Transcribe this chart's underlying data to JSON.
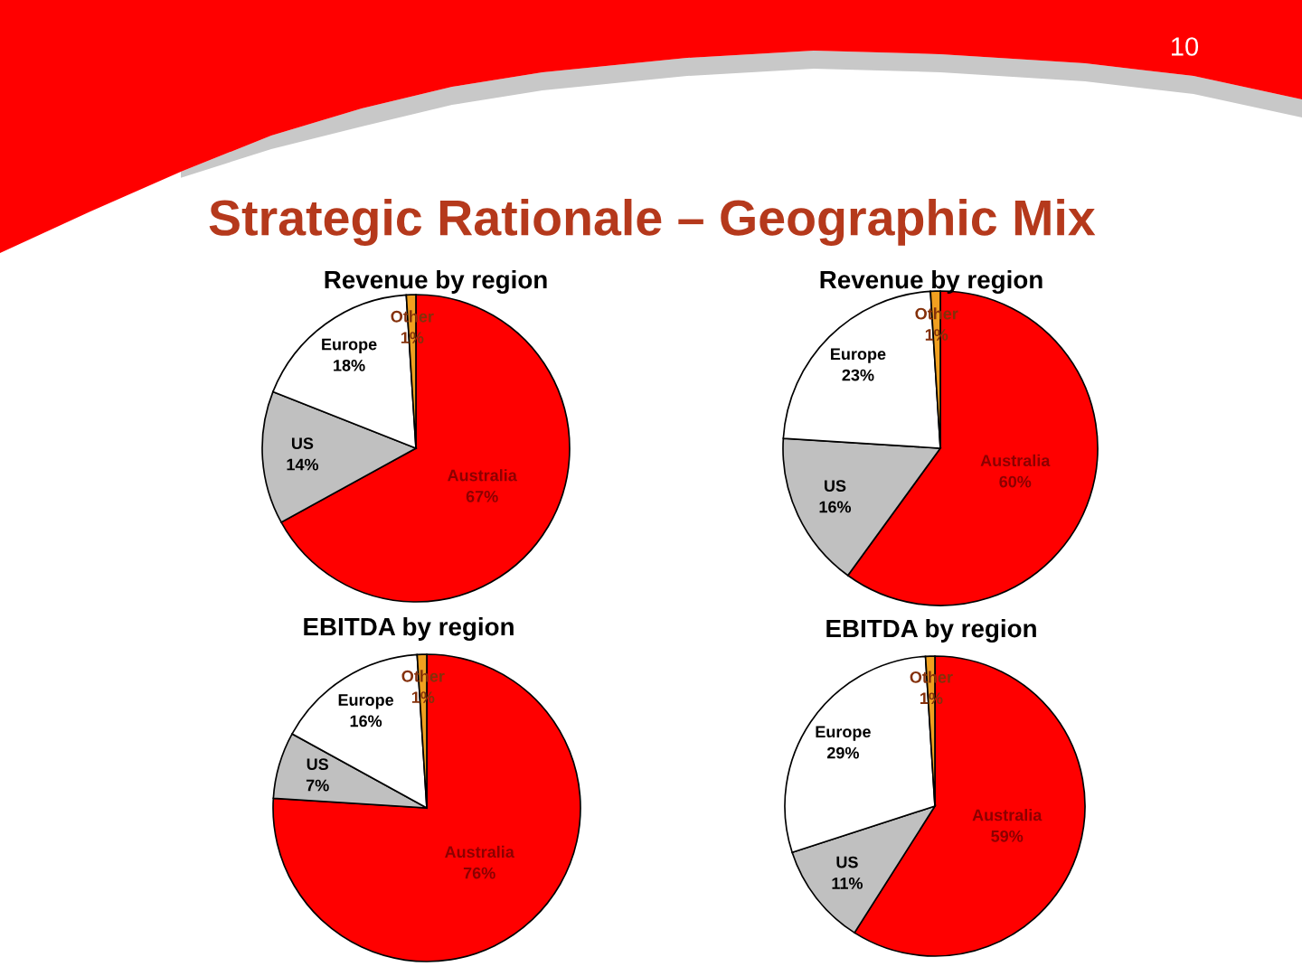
{
  "chart_data": [
    {
      "type": "other",
      "title": "Strategic Rationale – Geographic Mix",
      "annotations": [
        "10"
      ]
    },
    {
      "type": "pie",
      "title": "Revenue by region",
      "categories": [
        "Australia",
        "US",
        "Europe",
        "Other"
      ],
      "values": [
        67,
        14,
        18,
        1
      ],
      "value_labels": [
        "67%",
        "14%",
        "18%",
        "1%"
      ],
      "colors": [
        "#ff0000",
        "#c0c0c0",
        "#ffffff",
        "#f0a020"
      ]
    },
    {
      "type": "pie",
      "title": "Revenue by region",
      "categories": [
        "Australia",
        "US",
        "Europe",
        "Other"
      ],
      "values": [
        60,
        16,
        23,
        1
      ],
      "value_labels": [
        "60%",
        "16%",
        "23%",
        "1%"
      ],
      "colors": [
        "#ff0000",
        "#c0c0c0",
        "#ffffff",
        "#f0a020"
      ]
    },
    {
      "type": "pie",
      "title": "EBITDA by region",
      "categories": [
        "Australia",
        "US",
        "Europe",
        "Other"
      ],
      "values": [
        76,
        7,
        16,
        1
      ],
      "value_labels": [
        "76%",
        "7%",
        "16%",
        "1%"
      ],
      "colors": [
        "#ff0000",
        "#c0c0c0",
        "#ffffff",
        "#f0a020"
      ]
    },
    {
      "type": "pie",
      "title": "EBITDA by region",
      "categories": [
        "Australia",
        "US",
        "Europe",
        "Other"
      ],
      "values": [
        59,
        11,
        29,
        1
      ],
      "value_labels": [
        "59%",
        "11%",
        "29%",
        "1%"
      ],
      "colors": [
        "#ff0000",
        "#c0c0c0",
        "#ffffff",
        "#f0a020"
      ]
    }
  ]
}
